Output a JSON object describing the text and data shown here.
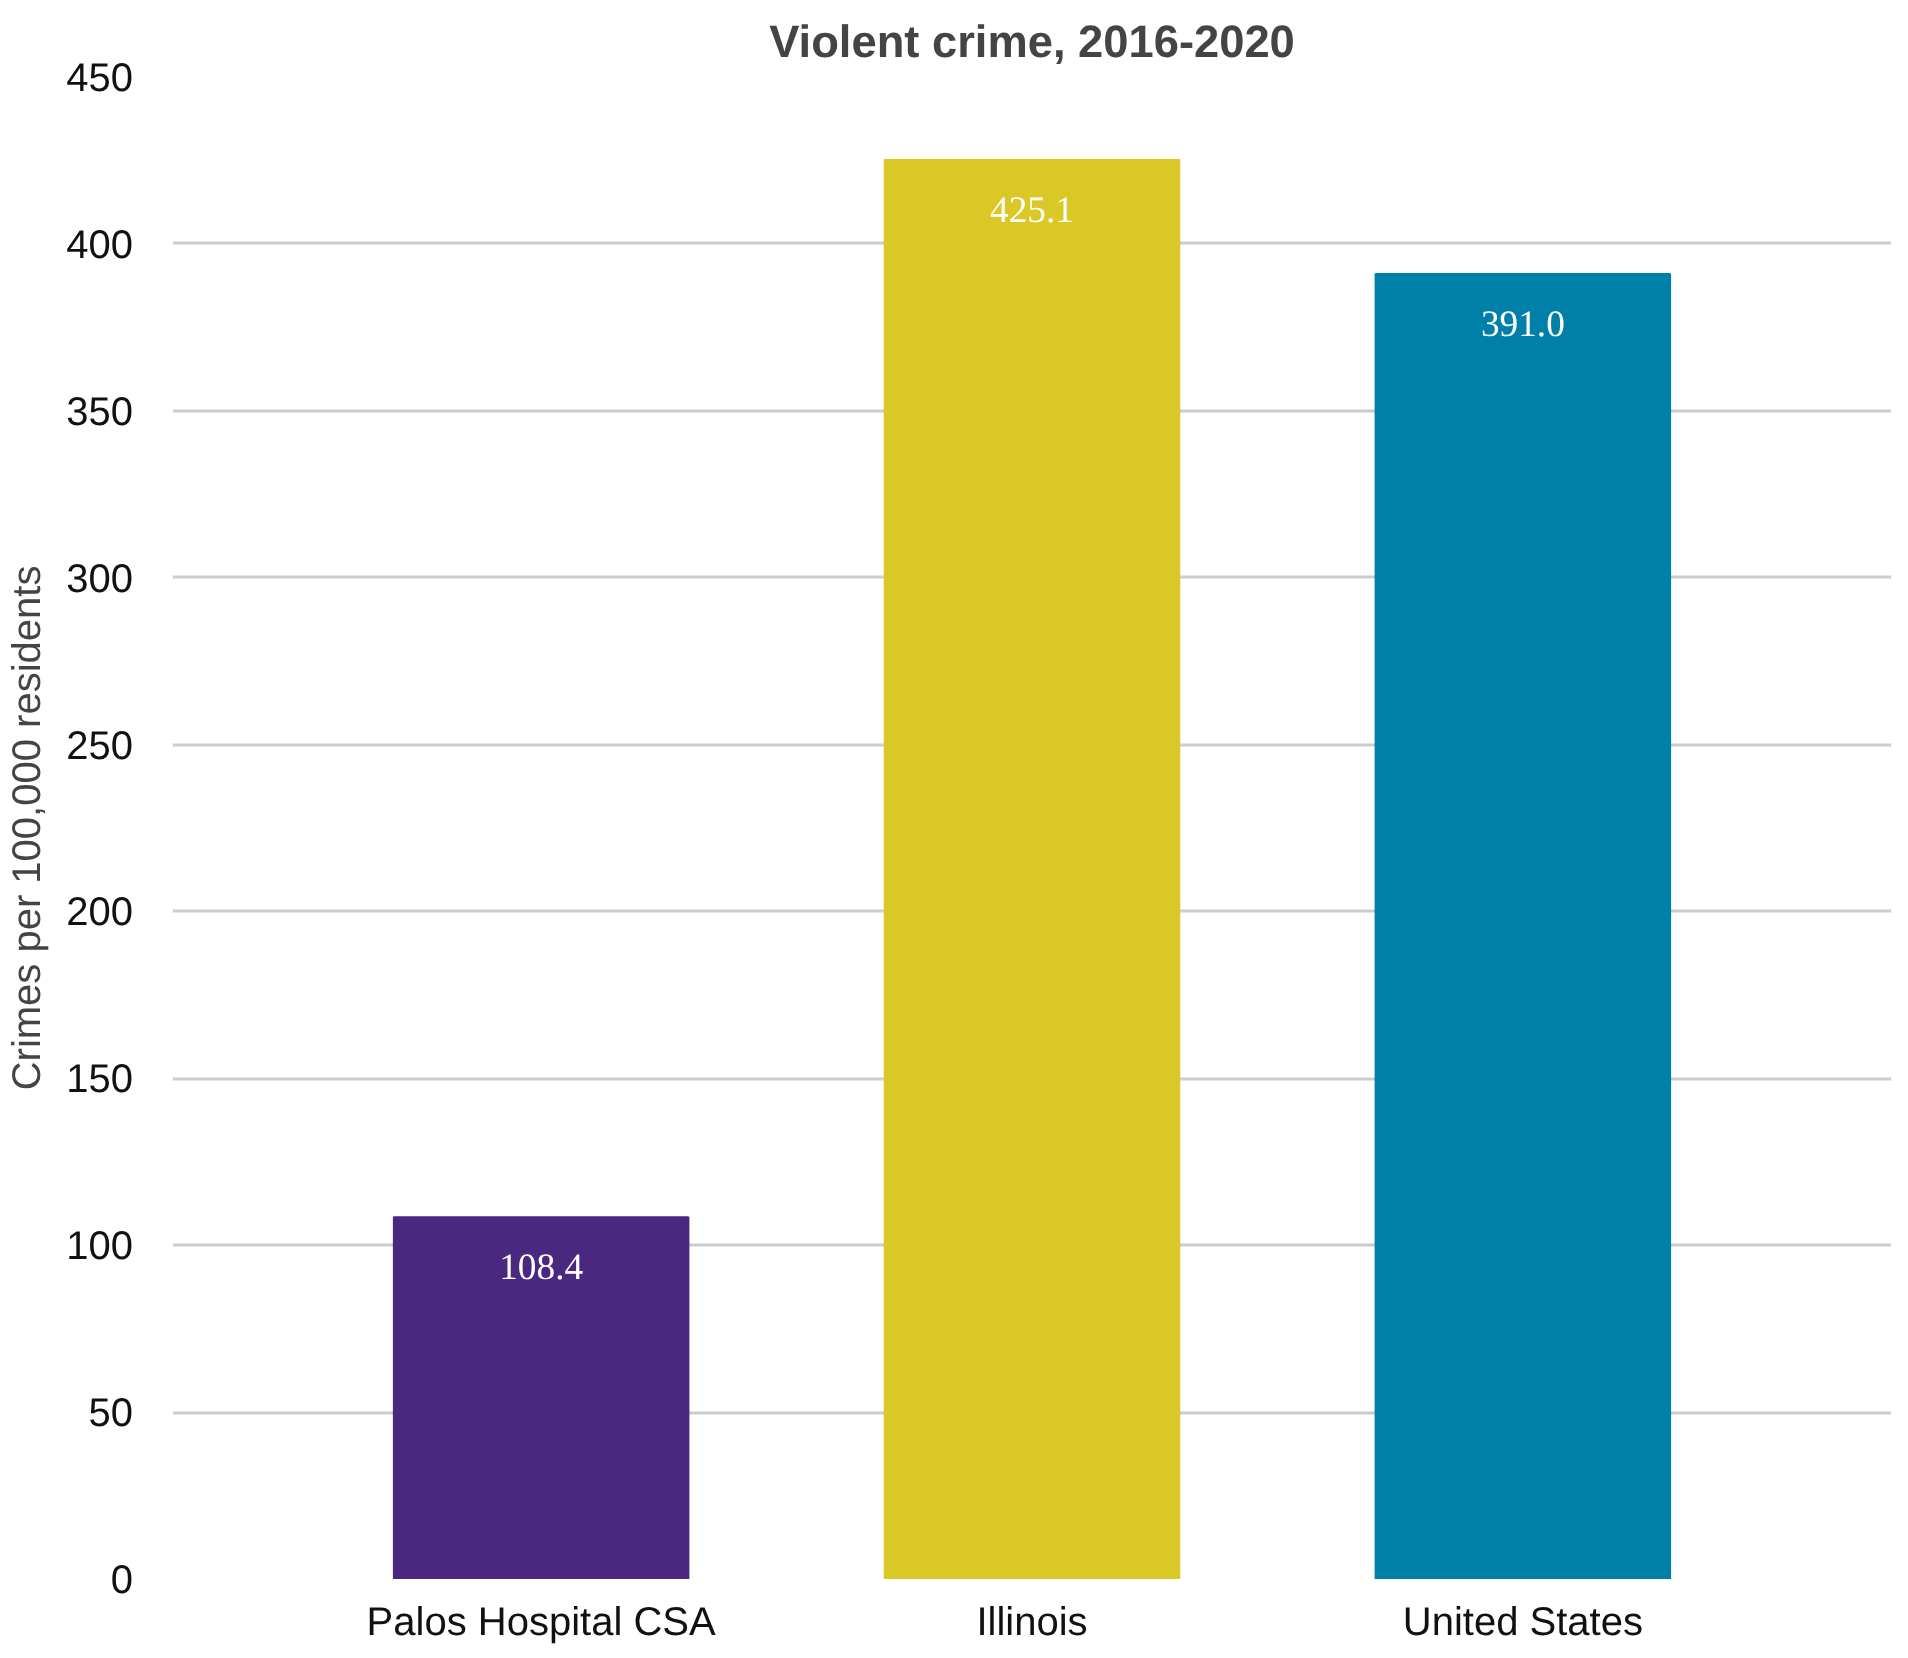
{
  "chart_data": {
    "type": "bar",
    "title": "Violent crime, 2016-2020",
    "ylabel": "Crimes per 100,000 residents",
    "categories": [
      "Palos Hospital CSA",
      "Illinois",
      "United States"
    ],
    "values": [
      108.4,
      425.1,
      391.0
    ],
    "value_labels": [
      "108.4",
      "425.1",
      "391.0"
    ],
    "colors": [
      "#4a2880",
      "#dac826",
      "#0080a8"
    ],
    "ylim": [
      0,
      450
    ],
    "yticks": [
      0,
      50,
      100,
      150,
      200,
      250,
      300,
      350,
      400,
      450
    ],
    "grid": "y"
  }
}
